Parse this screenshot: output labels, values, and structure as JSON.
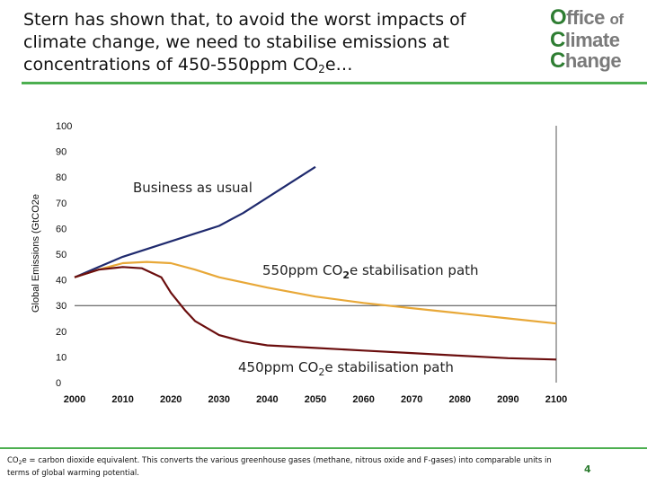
{
  "slide": {
    "title_main": "Stern has shown that, to avoid the worst impacts of climate change, we need to stabilise emissions at concentrations of 450-550ppm CO",
    "title_sub": "2",
    "title_end": "e…",
    "logo_line1_cap": "O",
    "logo_line1_rest": "ffice",
    "logo_line1_of": "of",
    "logo_line2_cap": "C",
    "logo_line2_rest": "limate",
    "logo_line3_cap": "C",
    "logo_line3_rest": "hange",
    "footnote_pre": "CO",
    "footnote_sub": "2",
    "footnote_main": "e = carbon dioxide equivalent. This converts the various greenhouse gases (methane, nitrous oxide and F-gases) into comparable units in terms of global warming potential.",
    "page_number": "4",
    "colors": {
      "accent_green": "#4caf50",
      "logo_green": "#2e7d32",
      "logo_grey": "#7a7a7a",
      "bau": "#1f2a6e",
      "s550": "#e8a838",
      "s450": "#6b0e0e"
    }
  },
  "chart_data": {
    "type": "line",
    "title": "",
    "xlabel": "",
    "ylabel": "Global Emissions (GtCO2e",
    "xlim": [
      2000,
      2100
    ],
    "ylim": [
      0,
      100
    ],
    "x_ticks": [
      2000,
      2010,
      2020,
      2030,
      2040,
      2050,
      2060,
      2070,
      2080,
      2090,
      2100
    ],
    "y_ticks": [
      0,
      10,
      20,
      30,
      40,
      50,
      60,
      70,
      80,
      90,
      100
    ],
    "reference_line_y": 30,
    "series": [
      {
        "name": "Business as usual",
        "label_parts": [
          "Business as usual"
        ],
        "color": "#1f2a6e",
        "x": [
          2000,
          2005,
          2010,
          2015,
          2020,
          2025,
          2030,
          2035,
          2040,
          2045,
          2050
        ],
        "y": [
          41,
          45,
          49,
          52,
          55,
          58,
          61,
          66,
          72,
          78,
          84
        ]
      },
      {
        "name": "550ppm CO2e stabilisation path",
        "label_parts": [
          "550ppm CO",
          "2",
          "e stabilisation path"
        ],
        "color": "#e8a838",
        "x": [
          2000,
          2005,
          2010,
          2015,
          2020,
          2025,
          2030,
          2040,
          2050,
          2060,
          2070,
          2080,
          2090,
          2100
        ],
        "y": [
          41,
          44,
          46.5,
          47,
          46.5,
          44,
          41,
          37,
          33.5,
          31,
          29,
          27,
          25,
          23
        ]
      },
      {
        "name": "450ppm CO2e stabilisation path",
        "label_parts": [
          "450ppm CO",
          "2",
          "e stabilisation path"
        ],
        "color": "#6b0e0e",
        "x": [
          2000,
          2005,
          2010,
          2014,
          2018,
          2020,
          2023,
          2025,
          2030,
          2035,
          2040,
          2050,
          2060,
          2070,
          2080,
          2090,
          2100
        ],
        "y": [
          41,
          44,
          45,
          44.5,
          41,
          35,
          28,
          24,
          18.5,
          16,
          14.5,
          13.5,
          12.5,
          11.5,
          10.5,
          9.5,
          9
        ]
      }
    ]
  }
}
